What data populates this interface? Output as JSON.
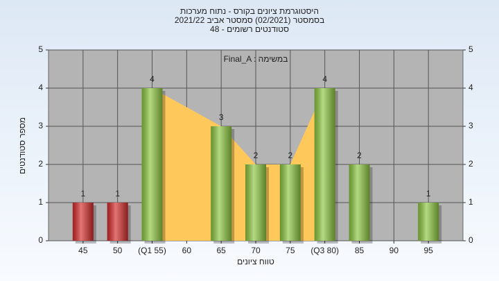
{
  "chart_data": {
    "type": "bar",
    "title": [
      "היסטוגרמת ציונים בקורס - נתוח מערכות",
      "בסמסטר  (02/2021)  סמסטר אביב 2021/22",
      "סטודנטים רשומים - 48"
    ],
    "annotation": "Final_A : במשימה",
    "x_label": "טווח ציונים",
    "y_label": "מספר סטודנטים",
    "x": [
      45,
      50,
      55,
      60,
      65,
      70,
      75,
      80,
      85,
      90,
      95
    ],
    "values": [
      1,
      1,
      4,
      0,
      3,
      2,
      2,
      4,
      2,
      0,
      1
    ],
    "value_labels": [
      "1",
      "1",
      "4",
      null,
      "3",
      "2",
      "2",
      "4",
      "2",
      null,
      "1"
    ],
    "colors": [
      "#d42a2a",
      "#d42a2a",
      "#8cc63f",
      "#8cc63f",
      "#8cc63f",
      "#8cc63f",
      "#8cc63f",
      "#8cc63f",
      "#8cc63f",
      "#8cc63f",
      "#8cc63f"
    ],
    "area_color": "#ffc85a",
    "xlim": [
      40,
      100
    ],
    "xticks": [
      45,
      50,
      {
        "value": 55,
        "label": "(Q1 55)"
      },
      60,
      65,
      70,
      75,
      {
        "value": 80,
        "label": "(Q3 80)"
      },
      85,
      90,
      95
    ],
    "ylim": [
      0,
      5
    ],
    "yticks": [
      0,
      1,
      2,
      3,
      4,
      5
    ],
    "grid": true
  }
}
